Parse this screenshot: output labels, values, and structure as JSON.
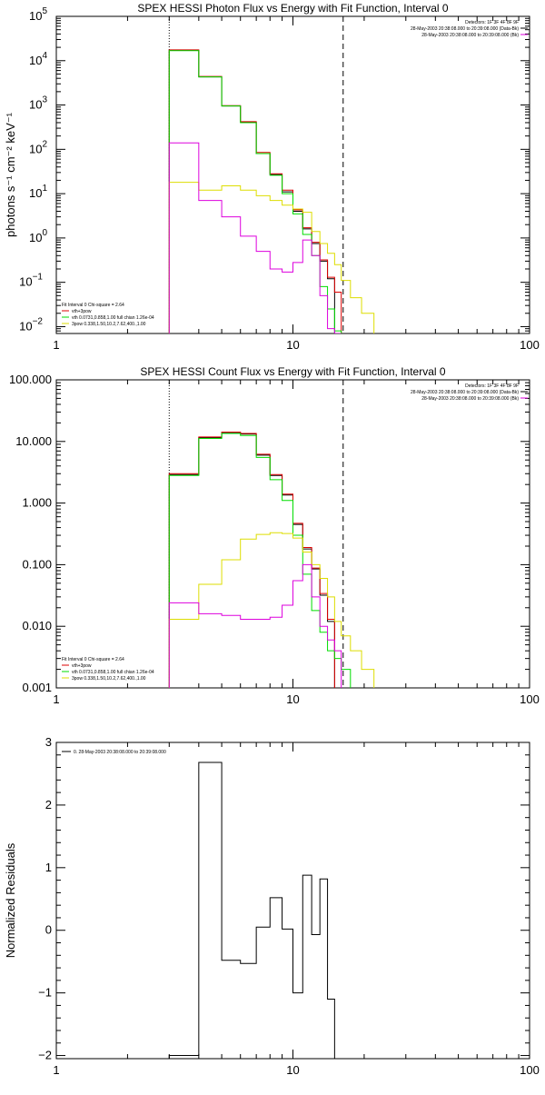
{
  "chart_data": [
    {
      "type": "line",
      "title": "SPEX HESSI Photon Flux vs Energy with Fit Function, Interval 0",
      "xlabel": "",
      "ylabel": "photons s⁻¹ cm⁻² keV⁻¹",
      "xscale": "log",
      "yscale": "log",
      "xlim": [
        1,
        100
      ],
      "ylim": [
        0.007,
        100000
      ],
      "x_ticks": [
        {
          "v": 1,
          "label": "1"
        },
        {
          "v": 10,
          "label": "10"
        },
        {
          "v": 100,
          "label": "100"
        }
      ],
      "y_ticks": [
        {
          "v": 0.01,
          "base": "10",
          "exp": "−2"
        },
        {
          "v": 0.1,
          "base": "10",
          "exp": "−1"
        },
        {
          "v": 1,
          "base": "10",
          "exp": "0"
        },
        {
          "v": 10,
          "base": "10",
          "exp": "1"
        },
        {
          "v": 100,
          "base": "10",
          "exp": "2"
        },
        {
          "v": 1000,
          "base": "10",
          "exp": "3"
        },
        {
          "v": 10000,
          "base": "10",
          "exp": "4"
        },
        {
          "v": 100000,
          "base": "10",
          "exp": "5"
        }
      ],
      "vlines": [
        {
          "x": 3,
          "style": "dotted"
        },
        {
          "x": 16.3,
          "style": "dashed"
        }
      ],
      "annotations": [
        "Detectors: 1F 3F 4F 8F 9F",
        "28-May-2003 20:38:08.000 to 20:39:08.000 (Data-Bk)",
        "28-May-2003 20:38:08.000 to 20:39:08.000 (Bk)"
      ],
      "legend": {
        "placement": "bottom-left",
        "header": "Fit Interval 0   Chi-square = 2.64",
        "entries": [
          "vth+3pow",
          "vth 0.0731,0.858,1.00  full chian 1.26e-04",
          "3pow 0.338,1.50,10.2,7.62,400.,1.00"
        ],
        "colors": [
          "#dd0000",
          "#00dd00",
          "#dddd00"
        ]
      },
      "edges": [
        3,
        4,
        5,
        6,
        7,
        8,
        9,
        10,
        11,
        12,
        13,
        14,
        15,
        16,
        17.5,
        19.5,
        22
      ],
      "series": [
        {
          "name": "Data-Bk",
          "color": "#000000",
          "values": [
            17000,
            4300,
            950,
            410,
            80,
            27,
            11,
            4,
            1.6,
            0.75,
            0.3,
            0.12
          ]
        },
        {
          "name": "vth+3pow",
          "color": "#dd0000",
          "values": [
            17500,
            4400,
            970,
            420,
            85,
            28,
            12,
            4.3,
            1.7,
            0.8,
            0.32,
            0.13,
            0.06
          ]
        },
        {
          "name": "vth",
          "color": "#00dd00",
          "values": [
            16800,
            4300,
            950,
            400,
            80,
            26,
            10,
            3.5,
            1.2,
            0.4,
            0.08,
            0.025,
            0.008
          ]
        },
        {
          "name": "3pow",
          "color": "#dddd00",
          "values": [
            18,
            12,
            15,
            12,
            9,
            7,
            5.5,
            4.5,
            3.8,
            1.4,
            0.75,
            0.45,
            0.25,
            0.11,
            0.045,
            0.02,
            0.01
          ]
        },
        {
          "name": "Bk",
          "color": "#dd00dd",
          "values": [
            140,
            7,
            3,
            1.1,
            0.5,
            0.2,
            0.17,
            0.28,
            0.9,
            0.4,
            0.05,
            0.009,
            0.0
          ]
        }
      ]
    },
    {
      "type": "line",
      "title": "SPEX HESSI Count Flux vs Energy with Fit Function, Interval 0",
      "xlabel": "",
      "ylabel": "",
      "xscale": "log",
      "yscale": "log",
      "xlim": [
        1,
        100
      ],
      "ylim": [
        0.001,
        100
      ],
      "x_ticks": [
        {
          "v": 1,
          "label": "1"
        },
        {
          "v": 10,
          "label": "10"
        },
        {
          "v": 100,
          "label": "100"
        }
      ],
      "y_ticks": [
        {
          "v": 0.001,
          "label": "0.001"
        },
        {
          "v": 0.01,
          "label": "0.010"
        },
        {
          "v": 0.1,
          "label": "0.100"
        },
        {
          "v": 1,
          "label": "1.000"
        },
        {
          "v": 10,
          "label": "10.000"
        },
        {
          "v": 100,
          "label": "100.000"
        }
      ],
      "vlines": [
        {
          "x": 3,
          "style": "dotted"
        },
        {
          "x": 16.3,
          "style": "dashed"
        }
      ],
      "annotations": [
        "Detectors: 1F 3F 4F 8F 9F",
        "28-May-2003 20:38:08.000 to 20:39:08.000 (Data-Bk)",
        "28-May-2003 20:38:08.000 to 20:39:08.000 (Bk)"
      ],
      "legend": {
        "placement": "bottom-left",
        "header": "Fit Interval 0   Chi-square = 2.64",
        "entries": [
          "vth+3pow",
          "vth 0.0731,0.858,1.00  full chian 1.26e-04",
          "3pow 0.338,1.50,10.2,7.62,400.,1.00"
        ],
        "colors": [
          "#dd0000",
          "#00dd00",
          "#dddd00"
        ]
      },
      "edges": [
        3,
        4,
        5,
        6,
        7,
        8,
        9,
        10,
        11,
        12,
        13,
        14,
        15,
        16,
        17.5,
        19.5,
        22
      ],
      "series": [
        {
          "name": "Data-Bk",
          "color": "#000000",
          "values": [
            2.9,
            11.5,
            14,
            13.2,
            6,
            2.8,
            1.35,
            0.45,
            0.18,
            0.085,
            0.032,
            0.012
          ]
        },
        {
          "name": "vth+3pow",
          "color": "#dd0000",
          "values": [
            3.0,
            11.8,
            14.2,
            13.5,
            6.2,
            2.9,
            1.4,
            0.47,
            0.19,
            0.088,
            0.034,
            0.013
          ]
        },
        {
          "name": "vth",
          "color": "#00dd00",
          "values": [
            2.8,
            11.2,
            13.5,
            12.5,
            5.5,
            2.4,
            1.1,
            0.3,
            0.07,
            0.018,
            0.008,
            0.004,
            0.003,
            0.002
          ]
        },
        {
          "name": "3pow",
          "color": "#dddd00",
          "values": [
            0.013,
            0.048,
            0.12,
            0.26,
            0.31,
            0.33,
            0.32,
            0.27,
            0.16,
            0.1,
            0.06,
            0.03,
            0.012,
            0.007,
            0.004,
            0.002,
            0.001
          ]
        },
        {
          "name": "Bk",
          "color": "#dd00dd",
          "values": [
            0.024,
            0.016,
            0.015,
            0.013,
            0.013,
            0.014,
            0.022,
            0.055,
            0.1,
            0.03,
            0.01,
            0.006,
            0.004
          ]
        }
      ]
    },
    {
      "type": "line",
      "title": "",
      "xlabel": "",
      "ylabel": "Normalized Residuals",
      "xscale": "log",
      "yscale": "linear",
      "xlim": [
        1,
        100
      ],
      "ylim": [
        -2.05,
        3
      ],
      "x_ticks": [
        {
          "v": 1,
          "label": "1"
        },
        {
          "v": 10,
          "label": "10"
        },
        {
          "v": 100,
          "label": "100"
        }
      ],
      "y_ticks": [
        {
          "v": -2,
          "label": "−2"
        },
        {
          "v": -1,
          "label": "−1"
        },
        {
          "v": 0,
          "label": "0"
        },
        {
          "v": 1,
          "label": "1"
        },
        {
          "v": 2,
          "label": "2"
        },
        {
          "v": 3,
          "label": "3"
        }
      ],
      "legend": {
        "placement": "top-left",
        "entries": [
          "0. 28-May-2003 20:38:08.000 to 20:39:08.000"
        ],
        "colors": [
          "#000000"
        ]
      },
      "edges": [
        3,
        4,
        5,
        6,
        7,
        8,
        9,
        10,
        11,
        12,
        13,
        14,
        15,
        16
      ],
      "series": [
        {
          "name": "0. 28-May-2003 20:38:08.000 to 20:39:08.000",
          "color": "#000000",
          "values": [
            -2.0,
            2.68,
            -0.48,
            -0.53,
            0.05,
            0.52,
            0.02,
            -1.0,
            0.88,
            -0.07,
            0.82,
            -1.1,
            -2.05
          ]
        }
      ]
    }
  ]
}
